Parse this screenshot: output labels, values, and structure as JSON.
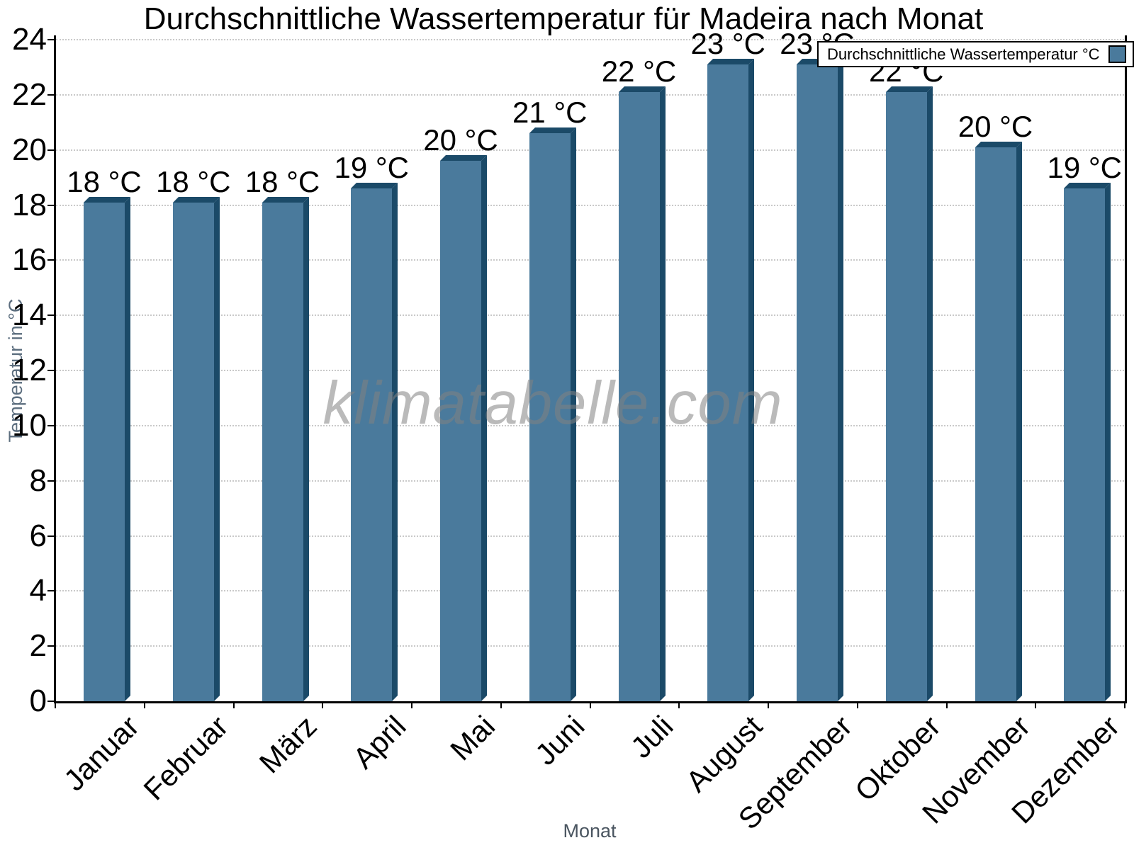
{
  "chart_data": {
    "type": "bar",
    "title": "Durchschnittliche Wassertemperatur für Madeira nach Monat",
    "xlabel": "Monat",
    "ylabel": "Temperatur in °C",
    "watermark": "klimatabelle.com",
    "legend": [
      {
        "label": "Durchschnittliche Wassertemperatur °C",
        "swatch_color": "#4a7a9c"
      }
    ],
    "legend_position": "top-right",
    "categories": [
      "Januar",
      "Februar",
      "März",
      "April",
      "Mai",
      "Juni",
      "Juli",
      "August",
      "September",
      "Oktober",
      "November",
      "Dezember"
    ],
    "series": [
      {
        "name": "Durchschnittliche Wassertemperatur °C",
        "values": [
          18.1,
          18.1,
          18.1,
          18.6,
          19.6,
          20.6,
          22.1,
          23.1,
          23.1,
          22.1,
          20.1,
          18.6
        ],
        "labels": [
          "18 °C",
          "18 °C",
          "18 °C",
          "19 °C",
          "20 °C",
          "21 °C",
          "22 °C",
          "23 °C",
          "23 °C",
          "22 °C",
          "20 °C",
          "19 °C"
        ]
      }
    ],
    "ylim": [
      0,
      24
    ],
    "yticks": [
      0,
      2,
      4,
      6,
      8,
      10,
      12,
      14,
      16,
      18,
      20,
      22,
      24
    ],
    "grid": "horizontal-dotted",
    "bar_style": "3d-extruded",
    "colors": {
      "bar_face": "#4a7a9c",
      "bar_shadow": "#1b4a68",
      "gridline": "#c9c9c9",
      "axis": "#000000",
      "title": "#000000",
      "data_label": "#000000",
      "tick_label": "#000000",
      "ylabel": "#5b6d7e",
      "xlabel": "#4a5560",
      "watermark": "#828282",
      "legend_border": "#000000",
      "legend_bg": "#ffffff"
    }
  }
}
